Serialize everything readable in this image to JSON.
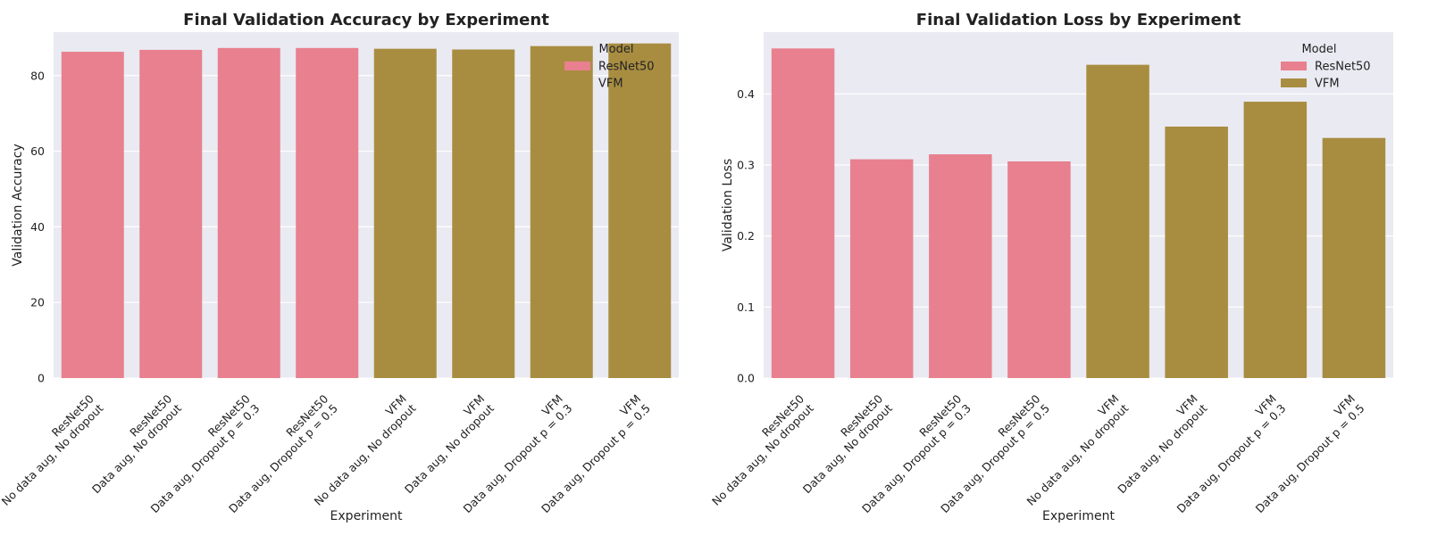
{
  "chart_data": [
    {
      "type": "bar",
      "title": "Final Validation Accuracy by Experiment",
      "xlabel": "Experiment",
      "ylabel": "Validation Accuracy",
      "ylim": [
        0,
        91.5
      ],
      "yticks": [
        0,
        20,
        40,
        60,
        80
      ],
      "ytick_labels": [
        "0",
        "20",
        "40",
        "60",
        "80"
      ],
      "grid": true,
      "legend_placement": "top-right",
      "categories": [
        [
          "ResNet50",
          "No data aug, No dropout"
        ],
        [
          "ResNet50",
          "Data aug, No dropout"
        ],
        [
          "ResNet50",
          "Data aug, Dropout p = 0.3"
        ],
        [
          "ResNet50",
          "Data aug, Dropout p = 0.5"
        ],
        [
          "VFM",
          "No data aug, No dropout"
        ],
        [
          "VFM",
          "Data aug, No dropout"
        ],
        [
          "VFM",
          "Data aug, Dropout p = 0.3"
        ],
        [
          "VFM",
          "Data aug, Dropout p = 0.5"
        ]
      ],
      "values": [
        86.3,
        86.8,
        87.3,
        87.3,
        87.1,
        86.9,
        87.8,
        88.5
      ],
      "bar_model": [
        "ResNet50",
        "ResNet50",
        "ResNet50",
        "ResNet50",
        "VFM",
        "VFM",
        "VFM",
        "VFM"
      ],
      "legend": {
        "title": "Model",
        "entries": [
          {
            "name": "ResNet50",
            "color": "#e8808f"
          },
          {
            "name": "VFM",
            "color": "#a88d41"
          }
        ]
      }
    },
    {
      "type": "bar",
      "title": "Final Validation Loss by Experiment",
      "xlabel": "Experiment",
      "ylabel": "Validation Loss",
      "ylim": [
        0,
        0.487
      ],
      "yticks": [
        0,
        0.1,
        0.2,
        0.3,
        0.4
      ],
      "ytick_labels": [
        "0.0",
        "0.1",
        "0.2",
        "0.3",
        "0.4"
      ],
      "grid": true,
      "legend_placement": "top-right",
      "categories": [
        [
          "ResNet50",
          "No data aug, No dropout"
        ],
        [
          "ResNet50",
          "Data aug, No dropout"
        ],
        [
          "ResNet50",
          "Data aug, Dropout p = 0.3"
        ],
        [
          "ResNet50",
          "Data aug, Dropout p = 0.5"
        ],
        [
          "VFM",
          "No data aug, No dropout"
        ],
        [
          "VFM",
          "Data aug, No dropout"
        ],
        [
          "VFM",
          "Data aug, Dropout p = 0.3"
        ],
        [
          "VFM",
          "Data aug, Dropout p = 0.5"
        ]
      ],
      "values": [
        0.464,
        0.308,
        0.315,
        0.305,
        0.441,
        0.354,
        0.389,
        0.338
      ],
      "bar_model": [
        "ResNet50",
        "ResNet50",
        "ResNet50",
        "ResNet50",
        "VFM",
        "VFM",
        "VFM",
        "VFM"
      ],
      "legend": {
        "title": "Model",
        "entries": [
          {
            "name": "ResNet50",
            "color": "#e8808f"
          },
          {
            "name": "VFM",
            "color": "#a88d41"
          }
        ]
      }
    }
  ],
  "colors": {
    "plot_background": "#eaeaf2",
    "grid": "#ffffff",
    "text": "#222222"
  }
}
